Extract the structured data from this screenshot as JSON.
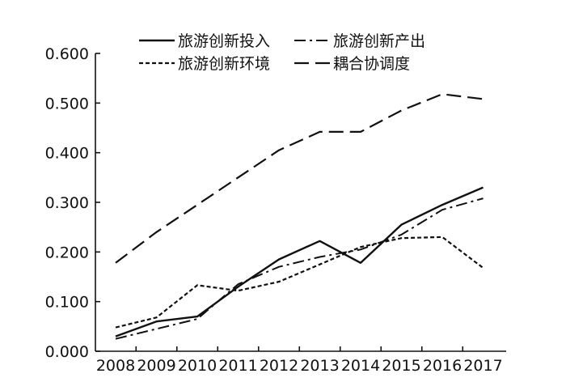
{
  "chart_data": {
    "type": "line",
    "x": [
      "2008",
      "2009",
      "2010",
      "2011",
      "2012",
      "2013",
      "2014",
      "2015",
      "2016",
      "2017"
    ],
    "ylim": [
      0,
      0.6
    ],
    "yticks": [
      "0.000",
      "0.100",
      "0.200",
      "0.300",
      "0.400",
      "0.500",
      "0.600"
    ],
    "grid": false,
    "legend_position": "top",
    "series": [
      {
        "name": "旅游创新投入",
        "style": "solid",
        "values": [
          0.03,
          0.06,
          0.07,
          0.13,
          0.185,
          0.222,
          0.178,
          0.255,
          0.295,
          0.33
        ]
      },
      {
        "name": "旅游创新产出",
        "style": "dash-dot",
        "values": [
          0.025,
          0.045,
          0.065,
          0.135,
          0.17,
          0.19,
          0.205,
          0.235,
          0.285,
          0.308
        ]
      },
      {
        "name": "旅游创新环境",
        "style": "short-dash",
        "values": [
          0.048,
          0.068,
          0.133,
          0.122,
          0.14,
          0.175,
          0.21,
          0.228,
          0.23,
          0.168
        ]
      },
      {
        "name": "耦合协调度",
        "style": "long-dash",
        "values": [
          0.178,
          0.24,
          0.295,
          0.35,
          0.405,
          0.442,
          0.442,
          0.485,
          0.518,
          0.508
        ]
      }
    ]
  }
}
